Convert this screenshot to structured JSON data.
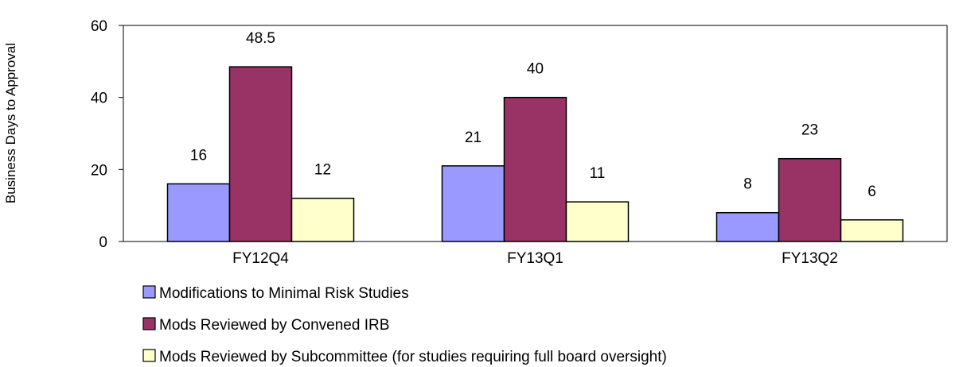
{
  "chart_data": {
    "type": "bar",
    "title": "",
    "xlabel": "",
    "ylabel": "Business Days to Approval",
    "categories": [
      "FY12Q4",
      "FY13Q1",
      "FY13Q2"
    ],
    "ylim": [
      0,
      60
    ],
    "yticks": [
      0,
      20,
      40,
      60
    ],
    "grid": false,
    "legend_position": "bottom",
    "series": [
      {
        "name": "Modifications to Minimal Risk Studies",
        "values": [
          16,
          21,
          8
        ],
        "labels": [
          "16",
          "21",
          "8"
        ],
        "color": "#9999FF"
      },
      {
        "name": "Mods Reviewed by Convened IRB",
        "values": [
          48.5,
          40,
          23
        ],
        "labels": [
          "48.5",
          "40",
          "23"
        ],
        "color": "#993366"
      },
      {
        "name": "Mods Reviewed by Subcommittee (for studies requiring full board oversight)",
        "values": [
          12,
          11,
          6
        ],
        "labels": [
          "12",
          "11",
          "6"
        ],
        "color": "#FFFFCC"
      }
    ]
  }
}
